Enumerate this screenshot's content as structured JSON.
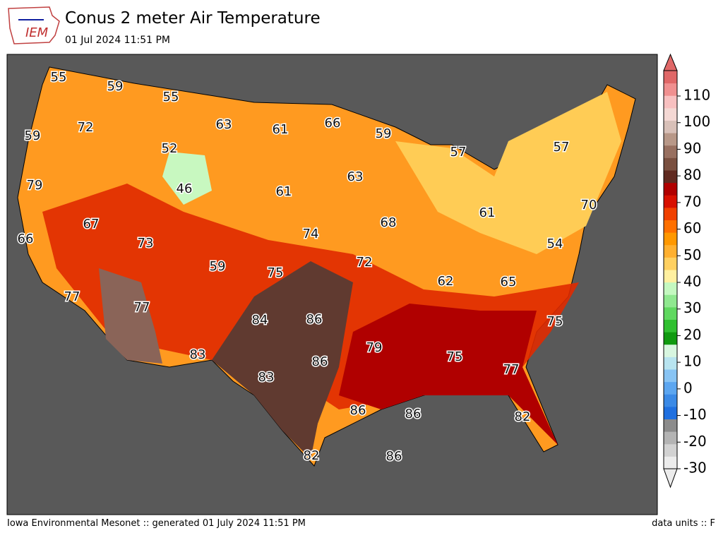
{
  "header": {
    "logo": "IEM",
    "title": "Conus 2 meter Air Temperature",
    "subtitle": "01 Jul 2024 11:51 PM"
  },
  "map": {
    "labels": [
      55,
      59,
      55,
      63,
      61,
      66,
      59,
      72,
      59,
      52,
      57,
      57,
      79,
      46,
      61,
      63,
      70,
      67,
      73,
      68,
      74,
      61,
      66,
      59,
      72,
      75,
      54,
      62,
      65,
      77,
      77,
      84,
      86,
      75,
      79,
      83,
      86,
      75,
      77,
      83,
      86,
      86,
      82,
      82,
      86
    ]
  },
  "colorbar": {
    "ticks": [
      -30,
      -20,
      -10,
      0,
      10,
      20,
      30,
      40,
      50,
      60,
      70,
      80,
      90,
      100,
      110
    ],
    "colors": [
      "#ececec",
      "#d2d2d2",
      "#b4b4b4",
      "#8c8c8c",
      "#2070e0",
      "#3b8ae6",
      "#5ca6f0",
      "#88c4f4",
      "#b8e4f0",
      "#d8f6e0",
      "#109a10",
      "#30c030",
      "#60d860",
      "#90e890",
      "#c4f8c0",
      "#fff0a0",
      "#ffd060",
      "#ffb030",
      "#ff9800",
      "#ff7000",
      "#f04000",
      "#d81000",
      "#b00000",
      "#602a20",
      "#7a5040",
      "#987060",
      "#b89888",
      "#d8c0b8",
      "#f4d8d4",
      "#f8c0c0",
      "#f09090",
      "#e06868"
    ]
  },
  "footer": {
    "left": "Iowa Environmental Mesonet :: generated 01 July 2024 11:51 PM",
    "right": "data units :: F"
  }
}
